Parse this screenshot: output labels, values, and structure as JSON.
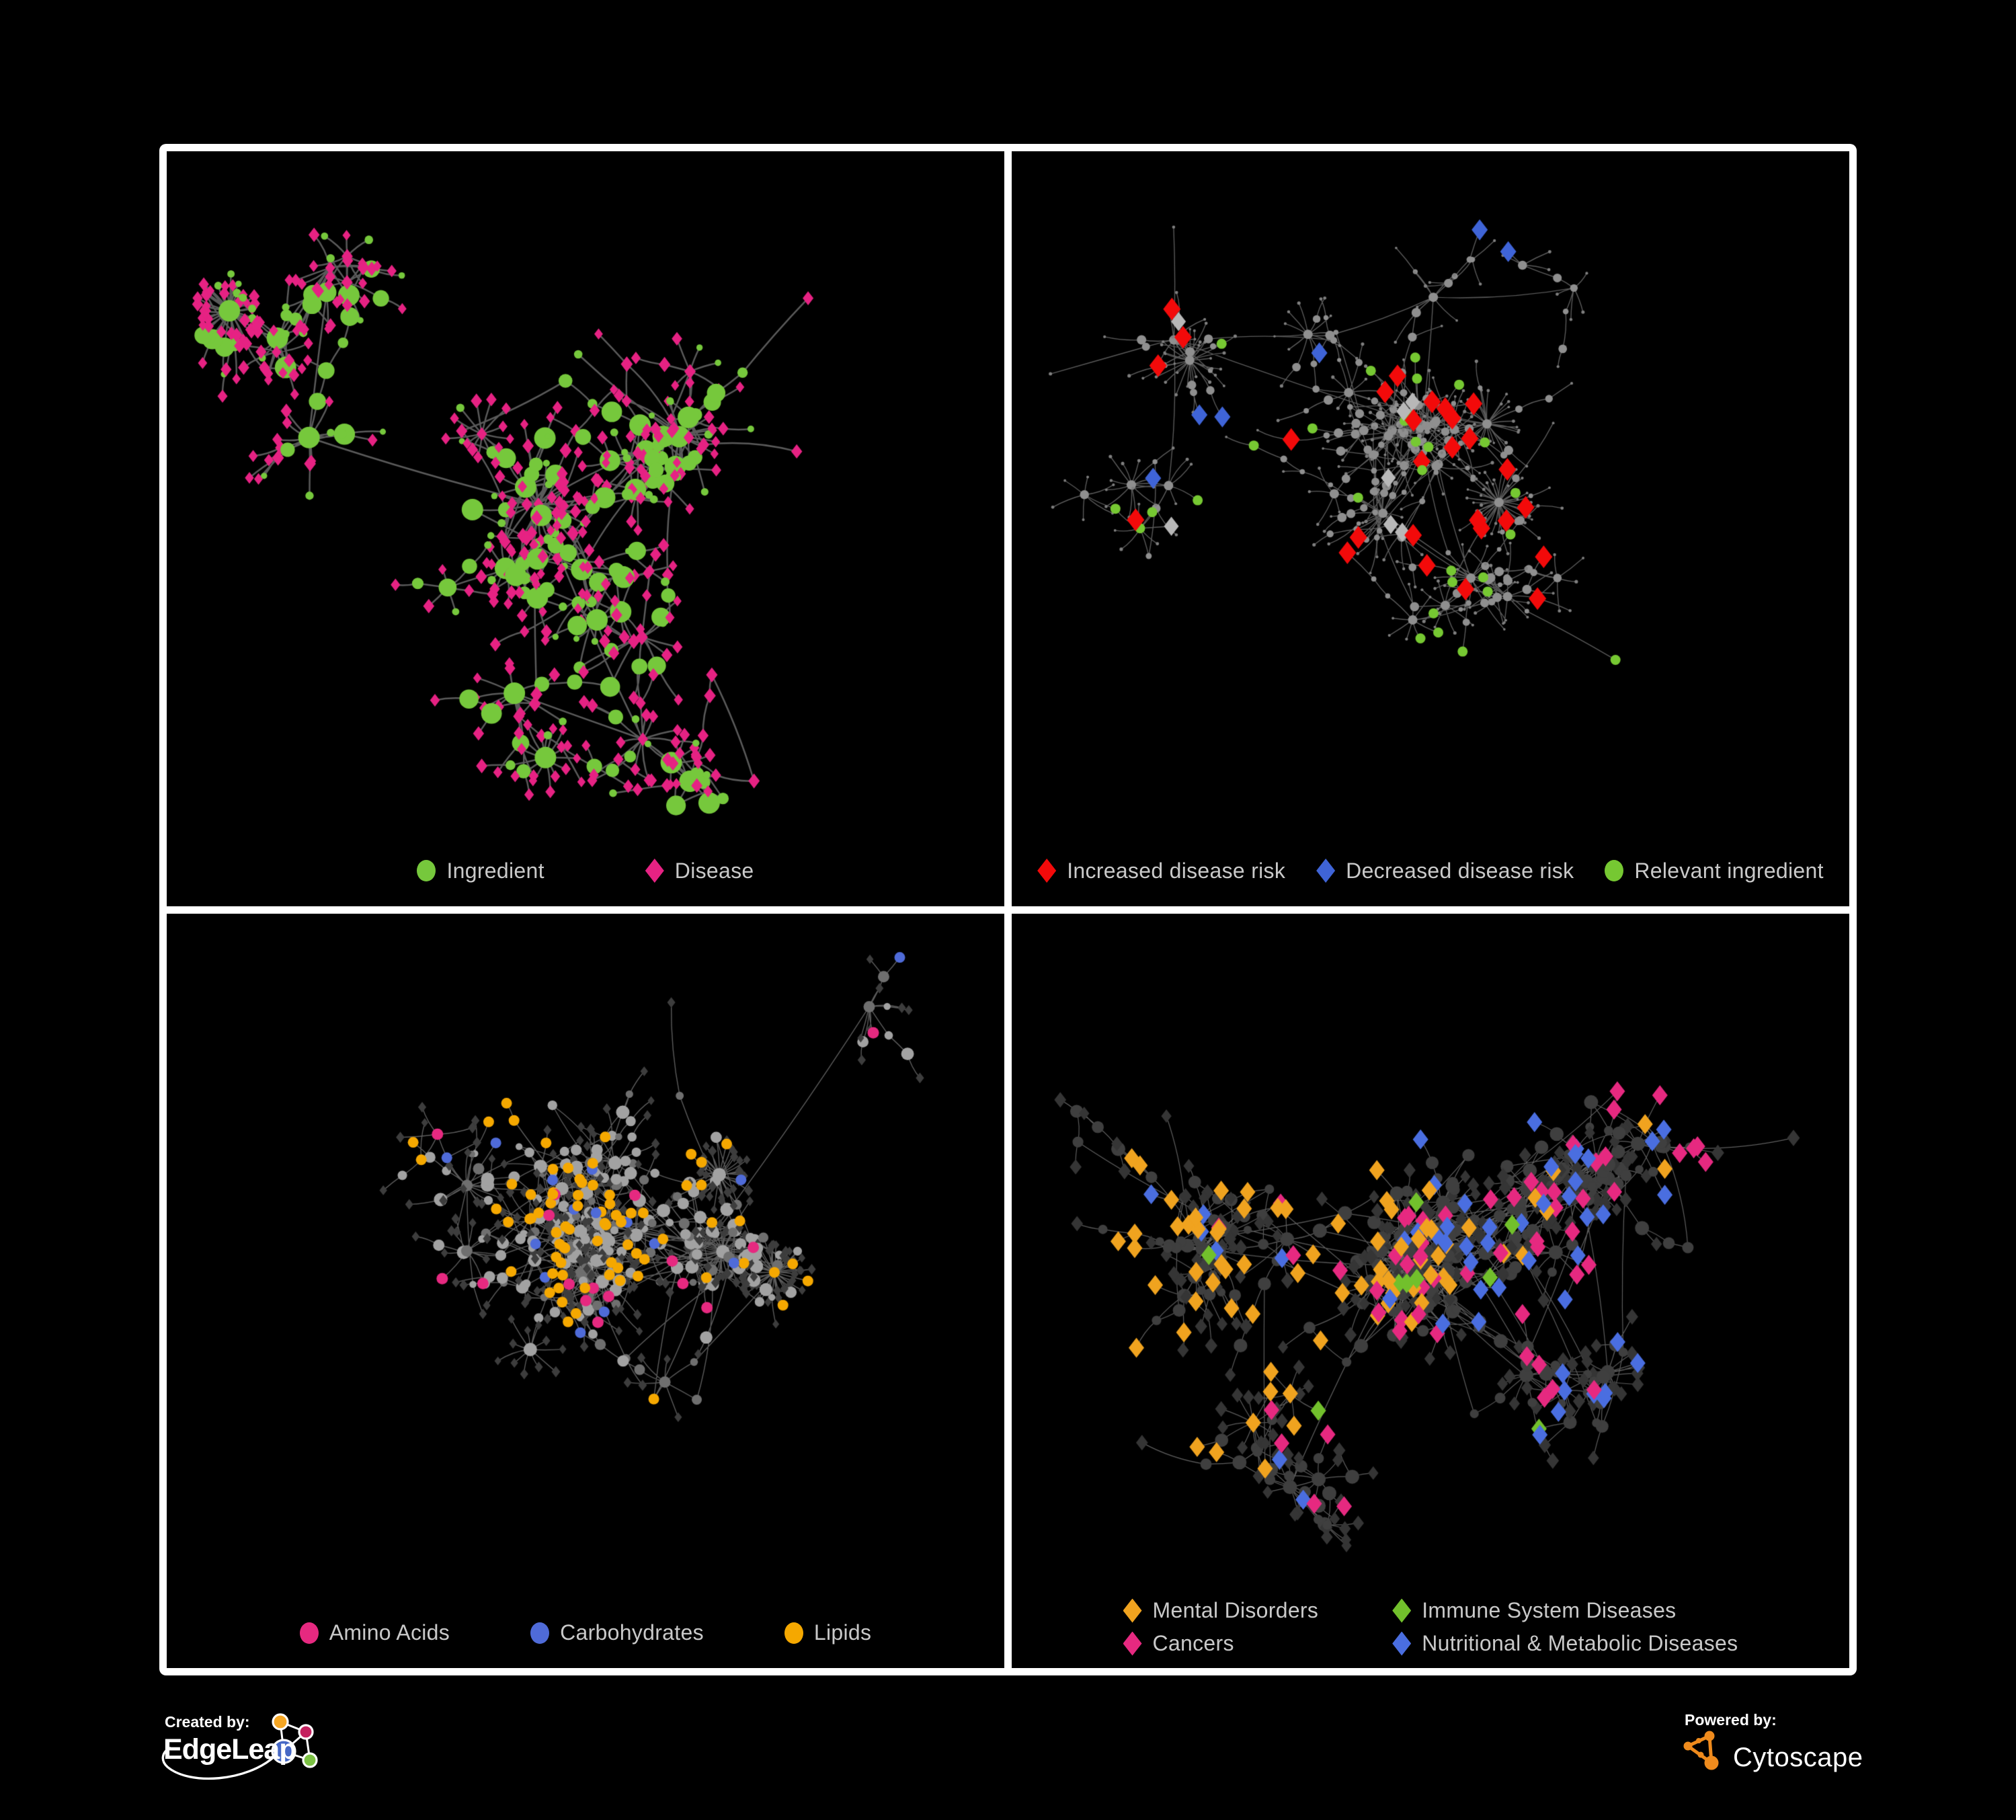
{
  "colors": {
    "background": "#000000",
    "frame": "#ffffff",
    "legend_text": "#c9c9c9",
    "edgeleap_orange": "#f5a623",
    "edgeleap_pink": "#c4215f",
    "edgeleap_blue": "#4668c5",
    "edgeleap_green": "#7bc143",
    "cytoscape_orange": "#ef8b1d"
  },
  "panels": [
    {
      "name": "ingredient-disease",
      "legend": [
        {
          "label": "Ingredient",
          "shape": "circle",
          "color": "#76c83c"
        },
        {
          "label": "Disease",
          "shape": "diamond",
          "color": "#e62283"
        }
      ]
    },
    {
      "name": "disease-risk",
      "legend": [
        {
          "label": "Increased disease risk",
          "shape": "diamond",
          "color": "#f30a0a"
        },
        {
          "label": "Decreased disease risk",
          "shape": "diamond",
          "color": "#3f64d7"
        },
        {
          "label": "Relevant ingredient",
          "shape": "circle",
          "color": "#76c832"
        }
      ]
    },
    {
      "name": "nutrient-classes",
      "legend": [
        {
          "label": "Amino Acids",
          "shape": "circle",
          "color": "#e62980"
        },
        {
          "label": "Carbohydrates",
          "shape": "circle",
          "color": "#4f6bd8"
        },
        {
          "label": "Lipids",
          "shape": "circle",
          "color": "#f5a800"
        }
      ]
    },
    {
      "name": "disease-classes",
      "legend": [
        {
          "label": "Mental Disorders",
          "shape": "diamond",
          "color": "#f0a31f"
        },
        {
          "label": "Immune System Diseases",
          "shape": "diamond",
          "color": "#72c02c"
        },
        {
          "label": "Cancers",
          "shape": "diamond",
          "color": "#e62980"
        },
        {
          "label": "Nutritional & Metabolic Diseases",
          "shape": "diamond",
          "color": "#4a6ee0"
        }
      ]
    }
  ],
  "networks": [
    {
      "seed": 101,
      "nodes": 560,
      "clusters": 7,
      "chainP": 0.48,
      "hubBias": 3,
      "burstP": 0.045,
      "megaShare": 0.05,
      "step": [
        30,
        62
      ],
      "extraEdges": 26,
      "extraDist": 180,
      "bottomMargin": 150,
      "edge": {
        "color": "#646464",
        "width": 2.5,
        "alpha": 0.9
      },
      "base": {
        "internal": [
          {
            "shape": "circle",
            "color": "#76c83c",
            "size": [
              6,
              16
            ],
            "degGrow": 1.0,
            "w": 0.58
          },
          {
            "shape": "diamond",
            "color": "#e62283",
            "size": [
              7,
              9
            ],
            "w": 0.42
          }
        ],
        "leaf": [
          {
            "shape": "diamond",
            "color": "#e62283",
            "size": [
              6,
              8.5
            ],
            "w": 0.8
          },
          {
            "shape": "circle",
            "color": "#76c83c",
            "size": [
              4.5,
              6.5
            ],
            "w": 0.2
          }
        ]
      },
      "highlights": []
    },
    {
      "seed": 202,
      "nodes": 600,
      "clusters": 9,
      "chainP": 0.55,
      "hubBias": 3,
      "burstP": 0.05,
      "megaShare": 0.08,
      "step": [
        26,
        56
      ],
      "extraEdges": 24,
      "extraDist": 200,
      "bottomMargin": 150,
      "edge": {
        "color": "#6a6a6a",
        "width": 1.4,
        "alpha": 0.85
      },
      "base": {
        "internal": [
          {
            "shape": "circle",
            "color": "#8f8f8f",
            "size": [
              2.6,
              7
            ],
            "degGrow": 0.4,
            "w": 1
          }
        ],
        "leaf": [
          {
            "shape": "circle",
            "color": "#7f7f7f",
            "size": [
              1.8,
              2.6
            ],
            "w": 1
          }
        ]
      },
      "highlights": [
        {
          "shape": "diamond",
          "color": "#f30a0a",
          "size": 13,
          "clusters": [
            {
              "count": 18,
              "spread": 300,
              "region": [
                0.3,
                0.65,
                0.25,
                0.6
              ]
            },
            {
              "count": 4,
              "spread": 140,
              "region": [
                0.62,
                0.82,
                0.3,
                0.55
              ]
            },
            {
              "count": 3,
              "spread": 130,
              "region": [
                0.5,
                0.8,
                0.62,
                0.85
              ]
            },
            {
              "count": 2,
              "spread": 120,
              "region": [
                0.8,
                0.97,
                0.25,
                0.5
              ]
            }
          ]
        },
        {
          "shape": "diamond",
          "color": "#3f64d7",
          "size": 12,
          "clusters": [
            {
              "count": 4,
              "spread": 90,
              "region": [
                0.12,
                0.35,
                0.3,
                0.52
              ]
            },
            {
              "count": 2,
              "spread": 60,
              "region": [
                0.78,
                0.97,
                0.18,
                0.4
              ]
            }
          ]
        },
        {
          "shape": "diamond",
          "color": "#b8b8b8",
          "size": 11,
          "clusters": [
            {
              "count": 7,
              "spread": 420,
              "region": [
                0.2,
                0.6,
                0.25,
                0.6
              ]
            }
          ]
        },
        {
          "shape": "circle",
          "color": "#76c832",
          "size": 7.5,
          "clusters": [
            {
              "count": 24,
              "spread": 380,
              "region": [
                0.2,
                0.55,
                0.28,
                0.55
              ]
            },
            {
              "count": 5,
              "spread": 9999
            }
          ]
        }
      ]
    },
    {
      "seed": 303,
      "nodes": 640,
      "clusters": 8,
      "chainP": 0.5,
      "hubBias": 3,
      "burstP": 0.05,
      "megaShare": 0.12,
      "step": [
        26,
        56
      ],
      "extraEdges": 70,
      "extraDist": 260,
      "bottomMargin": 150,
      "edge": {
        "color": "#9a9a9a",
        "width": 1.4,
        "alpha": 0.6
      },
      "base": {
        "internal": [
          {
            "shape": "circle",
            "color": "#a2a2a2",
            "size": [
              4.5,
              10
            ],
            "degGrow": 0.55,
            "w": 0.72
          },
          {
            "shape": "circle",
            "color": "#6f6f6f",
            "size": [
              4.5,
              8.5
            ],
            "degGrow": 0.4,
            "w": 0.28
          }
        ],
        "leaf": [
          {
            "shape": "diamond",
            "color": "#3d3d3d",
            "size": [
              5,
              6.5
            ],
            "w": 1
          }
        ]
      },
      "highlights": [
        {
          "shape": "circle",
          "color": "#f5a800",
          "size": 8,
          "clusters": [
            {
              "count": 38,
              "spread": 230,
              "region": [
                0.3,
                0.55,
                0.25,
                0.5
              ]
            },
            {
              "count": 20,
              "spread": 190,
              "region": [
                0.18,
                0.45,
                0.08,
                0.3
              ]
            },
            {
              "count": 18,
              "spread": 9999
            }
          ]
        },
        {
          "shape": "circle",
          "color": "#e62980",
          "size": 8.5,
          "clusters": [
            {
              "count": 16,
              "spread": 9999
            }
          ]
        },
        {
          "shape": "circle",
          "color": "#4f6bd8",
          "size": 8,
          "clusters": [
            {
              "count": 9,
              "spread": 150,
              "region": [
                0.3,
                0.55,
                0.08,
                0.28
              ]
            },
            {
              "count": 6,
              "spread": 9999
            }
          ]
        }
      ]
    },
    {
      "seed": 404,
      "nodes": 700,
      "clusters": 9,
      "chainP": 0.5,
      "hubBias": 3,
      "burstP": 0.05,
      "megaShare": 0.12,
      "step": [
        24,
        52
      ],
      "extraEdges": 90,
      "extraDist": 280,
      "bottomMargin": 170,
      "edge": {
        "color": "#a9a9a9",
        "width": 1.2,
        "alpha": 0.55
      },
      "base": {
        "internal": [
          {
            "shape": "circle",
            "color": "#3f3f3f",
            "size": [
              5.5,
              10.5
            ],
            "degGrow": 0.5,
            "w": 1
          }
        ],
        "leaf": [
          {
            "shape": "diamond",
            "color": "#353535",
            "size": [
              7.5,
              9.5
            ],
            "w": 1
          }
        ]
      },
      "highlights": [
        {
          "shape": "diamond",
          "color": "#f0a31f",
          "size": 11.5,
          "clusters": [
            {
              "count": 60,
              "spread": 230,
              "region": [
                0.06,
                0.3,
                0.3,
                0.62
              ]
            },
            {
              "count": 14,
              "spread": 9999
            }
          ]
        },
        {
          "shape": "diamond",
          "color": "#e62980",
          "size": 11.5,
          "clusters": [
            {
              "count": 38,
              "spread": 240,
              "region": [
                0.35,
                0.6,
                0.4,
                0.72
              ]
            },
            {
              "count": 8,
              "spread": 130,
              "region": [
                0.78,
                0.97,
                0.12,
                0.35
              ]
            },
            {
              "count": 10,
              "spread": 9999
            }
          ]
        },
        {
          "shape": "diamond",
          "color": "#4a6ee0",
          "size": 11.5,
          "clusters": [
            {
              "count": 22,
              "spread": 200,
              "region": [
                0.6,
                0.88,
                0.35,
                0.62
              ]
            },
            {
              "count": 12,
              "spread": 170,
              "region": [
                0.55,
                0.8,
                0.06,
                0.28
              ]
            },
            {
              "count": 16,
              "spread": 9999
            }
          ]
        },
        {
          "shape": "diamond",
          "color": "#72c02c",
          "size": 11.5,
          "clusters": [
            {
              "count": 9,
              "spread": 9999
            }
          ]
        }
      ]
    }
  ],
  "footer": {
    "created_by": "Created by:",
    "brand_left": "EdgeLeap",
    "powered_by": "Powered by:",
    "brand_right": "Cytoscape"
  }
}
